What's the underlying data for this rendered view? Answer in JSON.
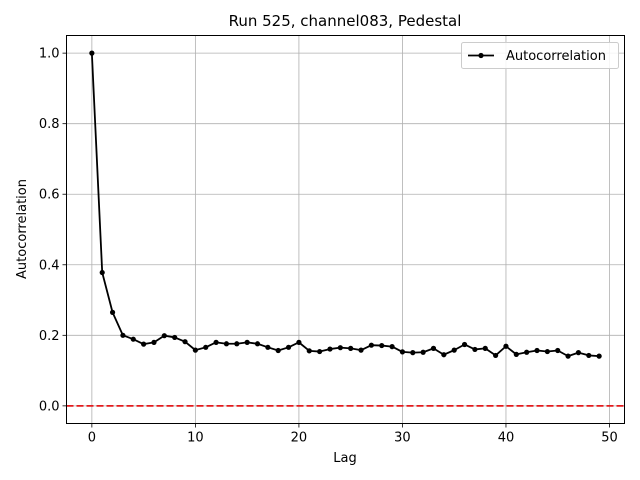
{
  "chart_data": {
    "type": "line",
    "title": "Run 525, channel083, Pedestal",
    "xlabel": "Lag",
    "ylabel": "Autocorrelation",
    "xlim": [
      -2.45,
      51.45
    ],
    "ylim": [
      -0.05,
      1.05
    ],
    "x_ticks": [
      0,
      10,
      20,
      30,
      40,
      50
    ],
    "y_ticks": [
      0.0,
      0.2,
      0.4,
      0.6,
      0.8,
      1.0
    ],
    "x_tick_labels": [
      "0",
      "10",
      "20",
      "30",
      "40",
      "50"
    ],
    "y_tick_labels": [
      "0.0",
      "0.2",
      "0.4",
      "0.6",
      "0.8",
      "1.0"
    ],
    "grid": true,
    "legend_position": "top-right",
    "series": [
      {
        "name": "Autocorrelation",
        "color": "#000000",
        "marker": "circle",
        "x": [
          0,
          1,
          2,
          3,
          4,
          5,
          6,
          7,
          8,
          9,
          10,
          11,
          12,
          13,
          14,
          15,
          16,
          17,
          18,
          19,
          20,
          21,
          22,
          23,
          24,
          25,
          26,
          27,
          28,
          29,
          30,
          31,
          32,
          33,
          34,
          35,
          36,
          37,
          38,
          39,
          40,
          41,
          42,
          43,
          44,
          45,
          46,
          47,
          48,
          49
        ],
        "y": [
          1.0,
          0.378,
          0.265,
          0.2,
          0.189,
          0.175,
          0.18,
          0.199,
          0.194,
          0.182,
          0.158,
          0.166,
          0.18,
          0.176,
          0.176,
          0.18,
          0.176,
          0.166,
          0.157,
          0.166,
          0.18,
          0.156,
          0.154,
          0.161,
          0.165,
          0.163,
          0.158,
          0.172,
          0.171,
          0.168,
          0.153,
          0.151,
          0.152,
          0.163,
          0.145,
          0.158,
          0.174,
          0.16,
          0.163,
          0.143,
          0.169,
          0.146,
          0.152,
          0.157,
          0.154,
          0.157,
          0.141,
          0.151,
          0.143,
          0.141
        ]
      }
    ],
    "reference_lines": [
      {
        "y": 0.0,
        "color": "#e41a1c",
        "style": "dashed"
      }
    ]
  }
}
